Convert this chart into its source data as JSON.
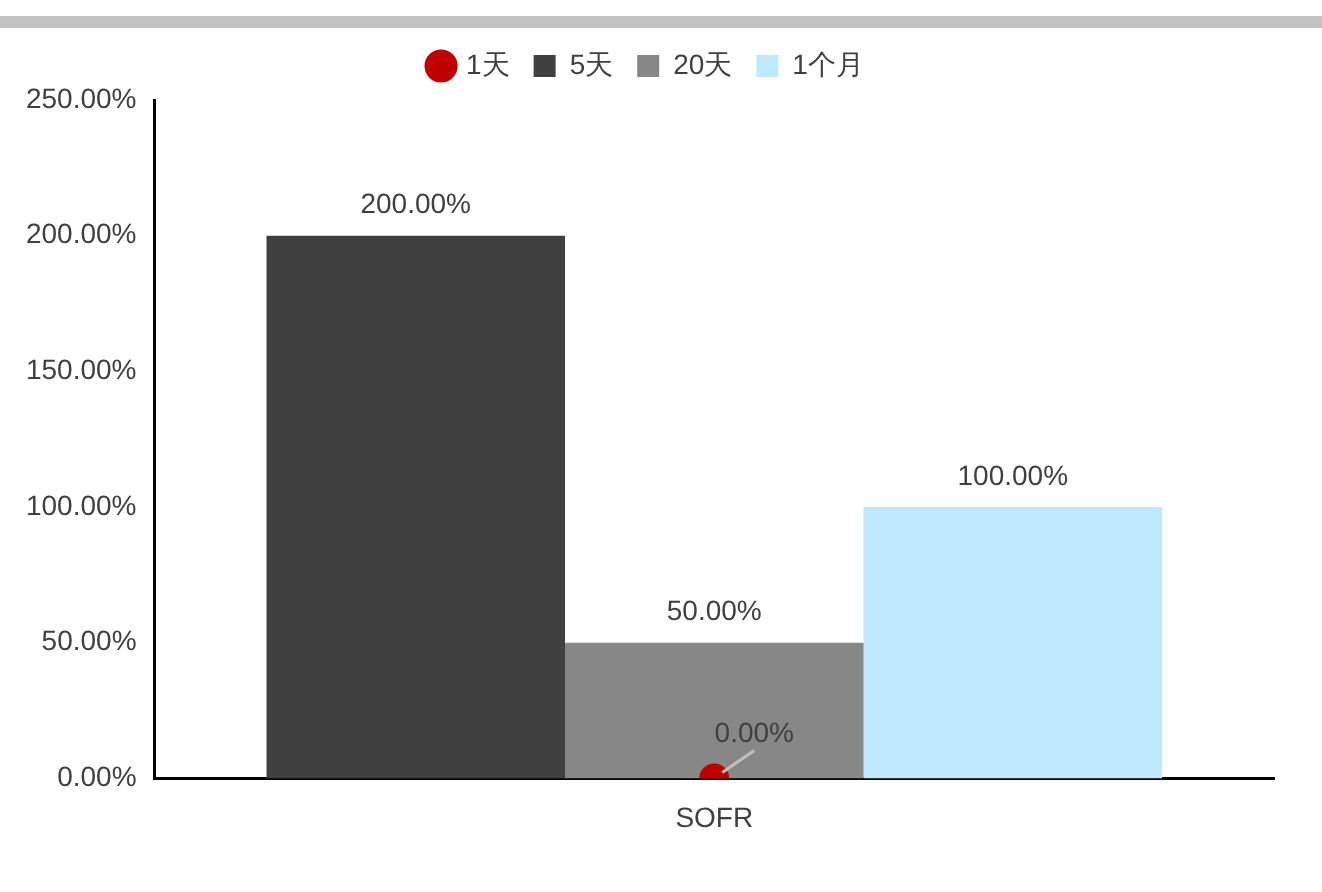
{
  "chart_data": {
    "type": "bar",
    "categories": [
      "SOFR"
    ],
    "series": [
      {
        "name": "5天",
        "color": "#404040",
        "values": [
          200
        ],
        "value_labels": [
          "200.00%"
        ]
      },
      {
        "name": "20天",
        "color": "#878787",
        "values": [
          50
        ],
        "value_labels": [
          "50.00%"
        ]
      },
      {
        "name": "1个月",
        "color": "#bfeafe",
        "values": [
          100
        ],
        "value_labels": [
          "100.00%"
        ]
      },
      {
        "name": "1天",
        "type": "scatter",
        "color": "#c00000",
        "x": [
          "SOFR"
        ],
        "values": [
          0
        ],
        "value_labels": [
          "0.00%"
        ]
      }
    ],
    "ylim": [
      0,
      250
    ],
    "yticks": [
      {
        "value": 0,
        "label": "0.00%"
      },
      {
        "value": 50,
        "label": "50.00%"
      },
      {
        "value": 100,
        "label": "100.00%"
      },
      {
        "value": 150,
        "label": "150.00%"
      },
      {
        "value": 200,
        "label": "200.00%"
      },
      {
        "value": 250,
        "label": "250.00%"
      }
    ],
    "grid": false,
    "legend": "top",
    "marker": "circle"
  }
}
